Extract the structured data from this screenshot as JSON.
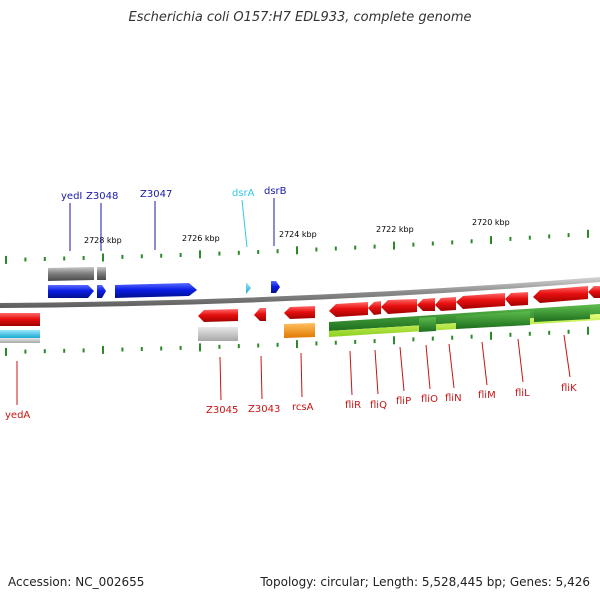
{
  "title": "Escherichia coli O157:H7 EDL933, complete genome",
  "footer": {
    "accession": "Accession: NC_002655",
    "summary": "Topology: circular; Length: 5,528,445 bp; Genes: 5,426"
  },
  "colors": {
    "forward_blue": "#0a1ee6",
    "rna_cyan": "#33c6e6",
    "reverse_red": "#e81010",
    "label_blue": "#1a1aa8",
    "label_red": "#c81414",
    "tick_green": "#2a8a2a",
    "backbone": "#8a8a8a",
    "orange": "#f28c00",
    "dark_green": "#2d8a2d",
    "light_green": "#a6e03a",
    "grey": "#7a7a7a"
  },
  "scale": {
    "labels": [
      "2728 kbp",
      "2726 kbp",
      "2724 kbp",
      "2722 kbp",
      "2720 kbp"
    ]
  },
  "upper_genes": [
    {
      "name": "yedI",
      "color": "label_blue"
    },
    {
      "name": "Z3048",
      "color": "label_blue"
    },
    {
      "name": "Z3047",
      "color": "label_blue"
    },
    {
      "name": "dsrA",
      "color": "rna_cyan"
    },
    {
      "name": "dsrB",
      "color": "label_blue"
    }
  ],
  "lower_genes": [
    {
      "name": "yedA"
    },
    {
      "name": "Z3045"
    },
    {
      "name": "Z3043"
    },
    {
      "name": "rcsA"
    },
    {
      "name": "fliR"
    },
    {
      "name": "fliQ"
    },
    {
      "name": "fliP"
    },
    {
      "name": "fliO"
    },
    {
      "name": "fliN"
    },
    {
      "name": "fliM"
    },
    {
      "name": "fliL"
    },
    {
      "name": "fliK"
    }
  ]
}
